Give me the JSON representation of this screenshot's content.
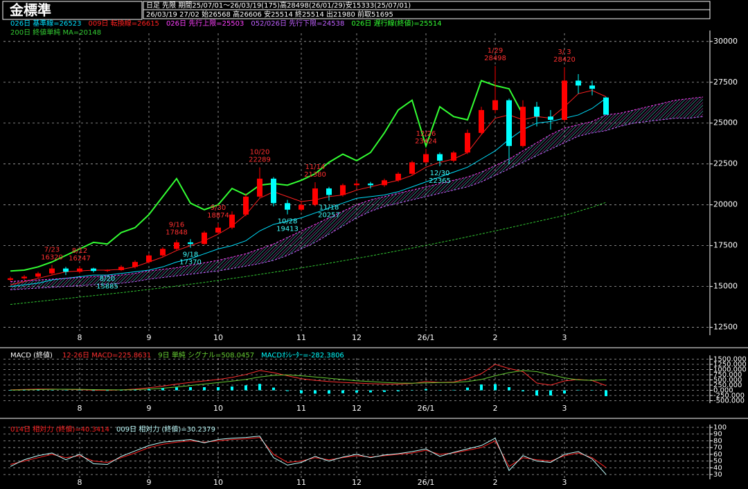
{
  "header": {
    "title": "金標準",
    "info": [
      "日足 先限 期間25/07/01～26/03/19(175)高28498(26/01/29)安15333(25/07/01)",
      "26/03/19 27/02 始26568 高26606 安25514 終25514 出21980 前取51695"
    ]
  },
  "chart_data": [
    {
      "type": "candlestick",
      "categories": [
        null,
        null,
        null,
        null,
        null,
        "8",
        null,
        null,
        null,
        null,
        "9",
        null,
        null,
        null,
        null,
        "10",
        null,
        null,
        null,
        null,
        null,
        "11",
        null,
        null,
        null,
        "12",
        null,
        null,
        null,
        null,
        "26/1",
        null,
        null,
        null,
        null,
        "2",
        null,
        null,
        null,
        null,
        "3",
        null,
        null,
        null,
        null,
        null,
        null,
        null,
        null,
        null,
        null
      ],
      "open": [
        15400,
        15500,
        15600,
        15800,
        16100,
        15900,
        16100,
        15950,
        16000,
        16200,
        16500,
        16900,
        17300,
        17700,
        17600,
        18300,
        18600,
        19400,
        20500,
        21600,
        20100,
        19700,
        20000,
        21000,
        20600,
        21200,
        21300,
        21200,
        21500,
        21900,
        22600,
        23100,
        22700,
        23200,
        24400,
        25800,
        26400,
        23600,
        26000,
        25400,
        25200,
        27600,
        27300,
        26568,
        null,
        null,
        null,
        null,
        null,
        null,
        null
      ],
      "high": [
        15600,
        15700,
        15900,
        16320,
        16200,
        16247,
        16150,
        16050,
        16300,
        16600,
        17000,
        17400,
        17848,
        17900,
        18400,
        18874,
        19600,
        20700,
        22289,
        21700,
        20300,
        20200,
        21380,
        21100,
        21300,
        21500,
        21400,
        21600,
        22000,
        22700,
        23424,
        23200,
        23300,
        24600,
        26000,
        28498,
        26500,
        26400,
        26300,
        25800,
        28420,
        28000,
        27600,
        26606,
        null,
        null,
        null,
        null,
        null,
        null,
        null
      ],
      "low": [
        15333,
        15400,
        15500,
        15700,
        15700,
        15800,
        15850,
        15885,
        15950,
        16100,
        16400,
        16800,
        17200,
        17370,
        17550,
        18200,
        18500,
        19300,
        20400,
        19900,
        19413,
        19600,
        19900,
        20257,
        20500,
        21000,
        21000,
        21100,
        21400,
        21800,
        22500,
        22365,
        22600,
        23100,
        24300,
        25600,
        22500,
        23500,
        24800,
        24600,
        25100,
        26800,
        26700,
        25514,
        null,
        null,
        null,
        null,
        null,
        null,
        null
      ],
      "close": [
        15500,
        15600,
        15800,
        16100,
        15900,
        16100,
        15950,
        16000,
        16200,
        16500,
        16900,
        17300,
        17700,
        17600,
        18300,
        18600,
        19400,
        20500,
        21600,
        20100,
        19700,
        20000,
        21000,
        20600,
        21200,
        21300,
        21200,
        21500,
        21900,
        22600,
        23100,
        22700,
        23200,
        24400,
        25800,
        26400,
        23600,
        26000,
        25400,
        25200,
        27600,
        27300,
        27100,
        25514,
        null,
        null,
        null,
        null,
        null,
        null,
        null
      ],
      "up_color": "#ff0000",
      "down_color": "#00ffff",
      "series": [
        {
          "name": "026日 基準線=26523",
          "color": "#00e0ff",
          "values": [
            15000,
            15100,
            15200,
            15400,
            15500,
            15600,
            15700,
            15700,
            15800,
            15900,
            16000,
            16200,
            16500,
            16700,
            17000,
            17300,
            17500,
            17800,
            18400,
            18800,
            19000,
            19200,
            19500,
            19800,
            20100,
            20400,
            20500,
            20600,
            20800,
            21100,
            21400,
            21700,
            22000,
            22300,
            22800,
            23300,
            24000,
            24600,
            25000,
            25100,
            25300,
            25500,
            25900,
            26523,
            null,
            null,
            null,
            null,
            null,
            null,
            null
          ]
        },
        {
          "name": "009日 転換線=26615",
          "color": "#ff2020",
          "values": [
            15100,
            15300,
            15500,
            15700,
            15900,
            15950,
            16000,
            16000,
            16050,
            16200,
            16500,
            16800,
            17200,
            17500,
            17800,
            18200,
            18700,
            19400,
            20400,
            20800,
            20500,
            20200,
            20300,
            20500,
            20600,
            20900,
            21100,
            21300,
            21500,
            21800,
            22300,
            22600,
            22800,
            23200,
            24300,
            25300,
            25500,
            25200,
            25400,
            25300,
            26000,
            26800,
            27000,
            26615,
            null,
            null,
            null,
            null,
            null,
            null,
            null
          ]
        },
        {
          "name": "026日 先行上限=25503",
          "color": "#ff40ff",
          "dashed": true,
          "values": [
            15300,
            15350,
            15400,
            15450,
            15500,
            15550,
            15600,
            15650,
            15700,
            15800,
            15950,
            16050,
            16150,
            16300,
            16450,
            16600,
            16800,
            17000,
            17300,
            17600,
            18000,
            18400,
            18800,
            19200,
            19600,
            20000,
            20300,
            20500,
            20700,
            20900,
            21100,
            21300,
            21500,
            21700,
            22000,
            22400,
            22800,
            23300,
            23800,
            24300,
            24700,
            24900,
            25100,
            25503,
            25600,
            25800,
            26000,
            26200,
            26400,
            26500,
            26600
          ]
        },
        {
          "name": "052/026日 先行下限=24538",
          "color": "#c060ff",
          "dashed": true,
          "values": [
            14800,
            14850,
            14900,
            14950,
            15000,
            15050,
            15100,
            15150,
            15200,
            15300,
            15450,
            15550,
            15650,
            15750,
            15850,
            15950,
            16100,
            16250,
            16400,
            16600,
            16900,
            17300,
            17700,
            18200,
            18700,
            19200,
            19600,
            19900,
            20100,
            20300,
            20500,
            20700,
            20900,
            21100,
            21400,
            21800,
            22200,
            22600,
            23000,
            23400,
            23800,
            24200,
            24400,
            24538,
            24800,
            25000,
            25100,
            25200,
            25300,
            25300,
            25400
          ]
        },
        {
          "name": "026日 遅行線(終値)=25514",
          "color": "#33ff33",
          "width": 2,
          "values": [
            15950,
            16000,
            16200,
            16500,
            16900,
            17300,
            17700,
            17600,
            18300,
            18600,
            19400,
            20500,
            21600,
            20100,
            19700,
            20000,
            21000,
            20600,
            21200,
            21300,
            21200,
            21500,
            21900,
            22600,
            23100,
            22700,
            23200,
            24400,
            25800,
            26400,
            23600,
            26000,
            25400,
            25200,
            27600,
            27300,
            27100,
            25514,
            null,
            null,
            null,
            null,
            null,
            null,
            null,
            null,
            null,
            null,
            null,
            null,
            null
          ]
        },
        {
          "name": "200日 終値単純 MA=20148",
          "color": "#33cc33",
          "dashed": true,
          "values": [
            13900,
            13990,
            14080,
            14170,
            14260,
            14350,
            14440,
            14530,
            14620,
            14720,
            14820,
            14920,
            15030,
            15140,
            15250,
            15370,
            15490,
            15610,
            15740,
            15870,
            16000,
            16140,
            16280,
            16420,
            16570,
            16720,
            16870,
            17030,
            17190,
            17350,
            17520,
            17690,
            17860,
            18040,
            18220,
            18400,
            18590,
            18780,
            18970,
            19160,
            19350,
            19600,
            19850,
            20148,
            null,
            null,
            null,
            null,
            null,
            null,
            null
          ]
        }
      ],
      "cloud": true,
      "annotations": [
        {
          "date": "7/23",
          "value": 16320
        },
        {
          "date": "8/12",
          "value": 16247
        },
        {
          "date": "8/20",
          "value": 15885
        },
        {
          "date": "9/16",
          "value": 17848
        },
        {
          "date": "9/18",
          "value": 17370
        },
        {
          "date": "9/30",
          "value": 18874
        },
        {
          "date": "10/20",
          "value": 22289
        },
        {
          "date": "10/28",
          "value": 19413
        },
        {
          "date": "11/14",
          "value": 21380
        },
        {
          "date": "11/18",
          "value": 20257
        },
        {
          "date": "12/26",
          "value": 23424
        },
        {
          "date": "12/30",
          "value": 22365
        },
        {
          "date": "1/29",
          "value": 28498
        },
        {
          "date": "3/ 3",
          "value": 28420
        }
      ],
      "ylim": [
        12100,
        30500
      ],
      "yticks": [
        12500,
        15000,
        17500,
        20000,
        22500,
        25000,
        27500,
        30000
      ],
      "grid": true
    },
    {
      "type": "line",
      "title": "MACD (終値)",
      "series": [
        {
          "name": "12-26日 MACD=225.8631",
          "color": "#ff3030",
          "values": [
            20,
            40,
            60,
            60,
            40,
            30,
            10,
            0,
            20,
            60,
            120,
            200,
            300,
            380,
            450,
            520,
            620,
            760,
            950,
            850,
            700,
            560,
            480,
            420,
            380,
            350,
            320,
            300,
            300,
            330,
            420,
            380,
            400,
            550,
            800,
            1250,
            1050,
            900,
            350,
            250,
            450,
            520,
            470,
            225.8631,
            null,
            null,
            null,
            null,
            null,
            null,
            null
          ]
        },
        {
          "name": "9日 単純 シグナル=508.0457",
          "color": "#66cc33",
          "values": [
            10,
            20,
            35,
            45,
            50,
            45,
            35,
            25,
            20,
            30,
            60,
            100,
            160,
            230,
            300,
            370,
            440,
            520,
            640,
            720,
            740,
            700,
            640,
            580,
            520,
            460,
            420,
            380,
            350,
            340,
            360,
            370,
            380,
            420,
            520,
            700,
            850,
            950,
            900,
            750,
            600,
            500,
            480,
            508.0457,
            null,
            null,
            null,
            null,
            null,
            null,
            null
          ]
        },
        {
          "name": "MACDｵｼﾚｰﾀｰ=-282.3806",
          "color": "#00ffff",
          "mark": "bar",
          "values": [
            10,
            20,
            25,
            15,
            -10,
            -15,
            -25,
            -25,
            0,
            30,
            60,
            100,
            140,
            150,
            150,
            150,
            180,
            240,
            310,
            130,
            -40,
            -140,
            -160,
            -160,
            -140,
            -110,
            -100,
            -80,
            -50,
            -10,
            60,
            10,
            20,
            130,
            280,
            300,
            150,
            -50,
            -250,
            -250,
            -150,
            20,
            -10,
            -282.3806,
            null,
            null,
            null,
            null,
            null,
            null,
            null
          ]
        }
      ],
      "ylim": [
        -550,
        1550
      ],
      "yticks": [
        {
          "value": 1500,
          "label": "1500.000"
        },
        {
          "value": 1250,
          "label": "1250.000"
        },
        {
          "value": 1000,
          "label": "1000.000"
        },
        {
          "value": 750,
          "label": "750.000"
        },
        {
          "value": 500,
          "label": "500.000"
        },
        {
          "value": 250,
          "label": "250.000"
        },
        {
          "value": 0,
          "label": "0.000"
        },
        {
          "value": -250,
          "label": "-250.000"
        },
        {
          "value": -500,
          "label": "-500.000"
        }
      ],
      "grid": true
    },
    {
      "type": "line",
      "series": [
        {
          "name": "014日 相対力 (終値)=40.3414",
          "color": "#ff2020",
          "values": [
            45,
            50,
            55,
            60,
            55,
            58,
            50,
            48,
            55,
            62,
            70,
            75,
            78,
            80,
            78,
            80,
            82,
            83,
            85,
            60,
            48,
            50,
            55,
            52,
            55,
            58,
            56,
            58,
            60,
            62,
            66,
            60,
            62,
            66,
            70,
            80,
            42,
            55,
            52,
            50,
            58,
            62,
            55,
            40.3414,
            null,
            null,
            null,
            null,
            null,
            null,
            null
          ]
        },
        {
          "name": "009日 相対力 (終値)=30.2379",
          "color": "#c0ffff",
          "values": [
            42,
            52,
            58,
            62,
            52,
            60,
            46,
            45,
            57,
            65,
            73,
            78,
            80,
            82,
            77,
            82,
            84,
            85,
            87,
            55,
            44,
            48,
            57,
            50,
            56,
            60,
            55,
            59,
            61,
            64,
            68,
            57,
            63,
            68,
            73,
            84,
            36,
            58,
            50,
            48,
            60,
            64,
            53,
            30.2379,
            null,
            null,
            null,
            null,
            null,
            null,
            null
          ]
        }
      ],
      "ylim": [
        25,
        100
      ],
      "yticks": [
        100,
        90,
        80,
        70,
        60,
        50,
        40,
        30
      ],
      "grid": true
    }
  ]
}
